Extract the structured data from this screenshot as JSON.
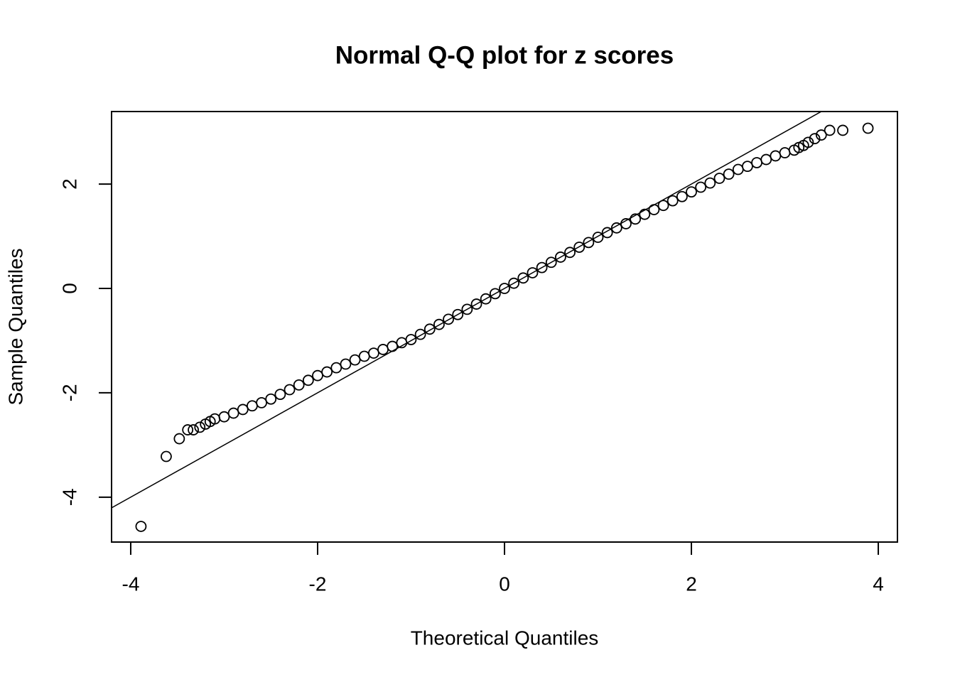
{
  "chart_data": {
    "type": "scatter",
    "title": "Normal Q-Q plot for z scores",
    "x_label": "Theoretical Quantiles",
    "y_label": "Sample Quantiles",
    "xlim": [
      -4.205,
      4.205
    ],
    "ylim": [
      -4.86,
      3.39
    ],
    "xticks": [
      -4,
      -2,
      0,
      2,
      4
    ],
    "yticks": [
      -4,
      -2,
      0,
      2
    ],
    "color": "#000000",
    "reference_line": {
      "intercept": 0,
      "slope": 1
    },
    "x": [
      -3.89,
      -3.62,
      -3.48,
      -3.39,
      -3.33,
      -3.26,
      -3.2,
      -3.15,
      -3.1,
      -3.0,
      -2.9,
      -2.8,
      -2.7,
      -2.6,
      -2.5,
      -2.4,
      -2.3,
      -2.2,
      -2.1,
      -2.0,
      -1.9,
      -1.8,
      -1.7,
      -1.6,
      -1.5,
      -1.4,
      -1.3,
      -1.2,
      -1.1,
      -1.0,
      -0.9,
      -0.8,
      -0.7,
      -0.6,
      -0.5,
      -0.4,
      -0.3,
      -0.2,
      -0.1,
      0,
      0.1,
      0.2,
      0.3,
      0.4,
      0.5,
      0.6,
      0.7,
      0.8,
      0.9,
      1.0,
      1.1,
      1.2,
      1.3,
      1.4,
      1.5,
      1.6,
      1.7,
      1.8,
      1.9,
      2.0,
      2.1,
      2.2,
      2.3,
      2.4,
      2.5,
      2.6,
      2.7,
      2.8,
      2.9,
      3.0,
      3.1,
      3.15,
      3.2,
      3.25,
      3.32,
      3.39,
      3.48,
      3.62,
      3.89
    ],
    "values": [
      -4.56,
      -3.22,
      -2.88,
      -2.71,
      -2.71,
      -2.66,
      -2.6,
      -2.55,
      -2.5,
      -2.46,
      -2.39,
      -2.32,
      -2.25,
      -2.19,
      -2.12,
      -2.03,
      -1.94,
      -1.85,
      -1.76,
      -1.67,
      -1.6,
      -1.52,
      -1.45,
      -1.37,
      -1.3,
      -1.24,
      -1.17,
      -1.11,
      -1.04,
      -0.98,
      -0.88,
      -0.78,
      -0.69,
      -0.59,
      -0.5,
      -0.4,
      -0.3,
      -0.2,
      -0.1,
      0,
      0.1,
      0.2,
      0.3,
      0.4,
      0.5,
      0.6,
      0.69,
      0.79,
      0.88,
      0.98,
      1.07,
      1.16,
      1.24,
      1.33,
      1.42,
      1.51,
      1.59,
      1.68,
      1.76,
      1.85,
      1.94,
      2.02,
      2.11,
      2.19,
      2.28,
      2.34,
      2.41,
      2.47,
      2.54,
      2.6,
      2.65,
      2.7,
      2.74,
      2.8,
      2.87,
      2.94,
      3.03,
      3.03,
      3.07
    ]
  }
}
